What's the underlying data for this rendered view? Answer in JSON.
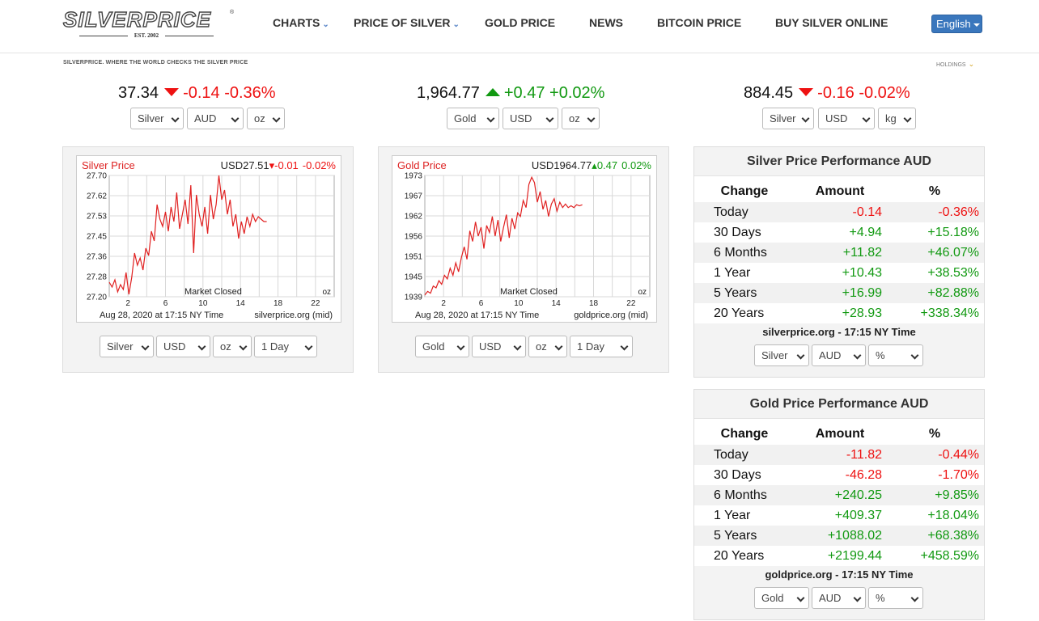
{
  "brand": {
    "logo_text": "SILVERPRICE",
    "est": "EST. 2002"
  },
  "nav": {
    "items": [
      {
        "label": "CHARTS",
        "has_dropdown": true
      },
      {
        "label": "PRICE OF SILVER",
        "has_dropdown": true
      },
      {
        "label": "GOLD PRICE",
        "has_dropdown": false
      },
      {
        "label": "NEWS",
        "has_dropdown": false
      },
      {
        "label": "BITCOIN PRICE",
        "has_dropdown": false
      },
      {
        "label": "BUY SILVER ONLINE",
        "has_dropdown": false
      }
    ],
    "language": "English"
  },
  "tagline": "SILVERPRICE. WHERE THE WORLD CHECKS THE SILVER PRICE",
  "holdings_label": "HOLDINGS",
  "tickers": [
    {
      "price": "37.34",
      "direction": "down",
      "change": "-0.14",
      "percent": "-0.36%",
      "metal": "Silver",
      "currency": "AUD",
      "unit": "oz"
    },
    {
      "price": "1,964.77",
      "direction": "up",
      "change": "+0.47",
      "percent": "+0.02%",
      "metal": "Gold",
      "currency": "USD",
      "unit": "oz"
    },
    {
      "price": "884.45",
      "direction": "down",
      "change": "-0.16",
      "percent": "-0.02%",
      "metal": "Silver",
      "currency": "USD",
      "unit": "kg"
    }
  ],
  "charts": [
    {
      "title": "Silver Price",
      "quote": "USD27.51",
      "change": "-0.01",
      "percent": "-0.02%",
      "direction": "down",
      "status": "Market Closed",
      "unit": "oz",
      "footer_date": "Aug 28, 2020 at 17:15 NY Time",
      "footer_source": "silverprice.org (mid)",
      "line_color": "#e02020",
      "selects": {
        "metal": "Silver",
        "currency": "USD",
        "unit": "oz",
        "range": "1 Day"
      }
    },
    {
      "title": "Gold Price",
      "quote": "USD1964.77",
      "change": "0.47",
      "percent": "0.02%",
      "direction": "up",
      "status": "Market Closed",
      "unit": "oz",
      "footer_date": "Aug 28, 2020 at 17:15 NY Time",
      "footer_source": "goldprice.org (mid)",
      "line_color": "#e02020",
      "selects": {
        "metal": "Gold",
        "currency": "USD",
        "unit": "oz",
        "range": "1 Day"
      }
    }
  ],
  "chart_data": [
    {
      "type": "line",
      "title": "Silver Price",
      "x_ticks": [
        2,
        6,
        10,
        14,
        18,
        22
      ],
      "y_ticks": [
        "27.70",
        "27.62",
        "27.53",
        "27.45",
        "27.36",
        "27.28",
        "27.20"
      ],
      "xlim": [
        0,
        24
      ],
      "ylim": [
        27.2,
        27.7
      ],
      "grid": true,
      "series": [
        {
          "x": [
            0,
            0.3,
            0.6,
            0.9,
            1.2,
            1.5,
            1.8,
            2.1,
            2.4,
            2.7,
            3.0,
            3.3,
            3.6,
            3.9,
            4.2,
            4.5,
            4.8,
            5.1,
            5.4,
            5.7,
            6.0,
            6.3,
            6.6,
            6.9,
            7.2,
            7.5,
            7.8,
            8.1,
            8.4,
            8.7,
            9.0,
            9.3,
            9.6,
            9.9,
            10.2,
            10.5,
            10.8,
            11.1,
            11.4,
            11.7,
            12.0,
            12.3,
            12.6,
            12.9,
            13.2,
            13.5,
            13.8,
            14.1,
            14.4,
            14.7,
            15.0,
            15.3,
            15.6,
            15.9,
            16.2,
            16.5,
            16.8
          ],
          "y": [
            27.26,
            27.24,
            27.27,
            27.22,
            27.25,
            27.23,
            27.3,
            27.21,
            27.28,
            27.38,
            27.33,
            27.36,
            27.31,
            27.4,
            27.37,
            27.47,
            27.43,
            27.58,
            27.52,
            27.49,
            27.55,
            27.47,
            27.57,
            27.51,
            27.63,
            27.48,
            27.54,
            27.6,
            27.5,
            27.66,
            27.38,
            27.62,
            27.54,
            27.49,
            27.57,
            27.46,
            27.62,
            27.52,
            27.58,
            27.7,
            27.6,
            27.64,
            27.54,
            27.6,
            27.49,
            27.54,
            27.44,
            27.51,
            27.46,
            27.53,
            27.49,
            27.54,
            27.51,
            27.53,
            27.52,
            27.51,
            27.51
          ]
        }
      ]
    },
    {
      "type": "line",
      "title": "Gold Price",
      "x_ticks": [
        2,
        6,
        10,
        14,
        18,
        22
      ],
      "y_ticks": [
        "1973",
        "1967",
        "1962",
        "1956",
        "1951",
        "1945",
        "1939"
      ],
      "xlim": [
        0,
        24
      ],
      "ylim": [
        1939,
        1973
      ],
      "grid": true,
      "series": [
        {
          "x": [
            0,
            0.3,
            0.6,
            0.9,
            1.2,
            1.5,
            1.8,
            2.1,
            2.4,
            2.7,
            3.0,
            3.3,
            3.6,
            3.9,
            4.2,
            4.5,
            4.8,
            5.1,
            5.4,
            5.7,
            6.0,
            6.3,
            6.6,
            6.9,
            7.2,
            7.5,
            7.8,
            8.1,
            8.4,
            8.7,
            9.0,
            9.3,
            9.6,
            9.9,
            10.2,
            10.5,
            10.8,
            11.1,
            11.4,
            11.7,
            12.0,
            12.3,
            12.6,
            12.9,
            13.2,
            13.5,
            13.8,
            14.1,
            14.4,
            14.7,
            15.0,
            15.3,
            15.6,
            15.9,
            16.2,
            16.5,
            16.8
          ],
          "y": [
            1939.5,
            1940.5,
            1940.0,
            1942.0,
            1941.5,
            1943.5,
            1942.5,
            1945.0,
            1944.0,
            1947.0,
            1945.0,
            1948.5,
            1946.0,
            1950.0,
            1953.0,
            1949.5,
            1957.5,
            1954.5,
            1960.0,
            1956.0,
            1958.5,
            1952.5,
            1959.0,
            1957.0,
            1961.5,
            1956.0,
            1960.5,
            1954.5,
            1958.5,
            1962.0,
            1955.5,
            1961.0,
            1958.0,
            1962.5,
            1961.5,
            1966.0,
            1964.0,
            1970.5,
            1972.5,
            1971.0,
            1965.5,
            1968.5,
            1963.5,
            1966.0,
            1961.5,
            1965.0,
            1966.5,
            1963.0,
            1965.5,
            1964.0,
            1965.0,
            1964.0,
            1964.5,
            1964.0,
            1964.8,
            1964.5,
            1964.8
          ]
        }
      ]
    }
  ],
  "performance": [
    {
      "title": "Silver Price Performance AUD",
      "headers": [
        "Change",
        "Amount",
        "%"
      ],
      "rows": [
        {
          "period": "Today",
          "amount": "-0.14",
          "percent": "-0.36%"
        },
        {
          "period": "30 Days",
          "amount": "+4.94",
          "percent": "+15.18%"
        },
        {
          "period": "6 Months",
          "amount": "+11.82",
          "percent": "+46.07%"
        },
        {
          "period": "1 Year",
          "amount": "+10.43",
          "percent": "+38.53%"
        },
        {
          "period": "5 Years",
          "amount": "+16.99",
          "percent": "+82.88%"
        },
        {
          "period": "20 Years",
          "amount": "+28.93",
          "percent": "+338.34%"
        }
      ],
      "source": "silverprice.org - 17:15 NY Time",
      "selects": {
        "metal": "Silver",
        "currency": "AUD",
        "mode": "%"
      }
    },
    {
      "title": "Gold Price Performance AUD",
      "headers": [
        "Change",
        "Amount",
        "%"
      ],
      "rows": [
        {
          "period": "Today",
          "amount": "-11.82",
          "percent": "-0.44%"
        },
        {
          "period": "30 Days",
          "amount": "-46.28",
          "percent": "-1.70%"
        },
        {
          "period": "6 Months",
          "amount": "+240.25",
          "percent": "+9.85%"
        },
        {
          "period": "1 Year",
          "amount": "+409.37",
          "percent": "+18.04%"
        },
        {
          "period": "5 Years",
          "amount": "+1088.02",
          "percent": "+68.38%"
        },
        {
          "period": "20 Years",
          "amount": "+2199.44",
          "percent": "+458.59%"
        }
      ],
      "source": "goldprice.org - 17:15 NY Time",
      "selects": {
        "metal": "Gold",
        "currency": "AUD",
        "mode": "%"
      }
    }
  ],
  "colors": {
    "negative": "#ee1111",
    "positive": "#119911",
    "accent": "#3a77bd"
  }
}
